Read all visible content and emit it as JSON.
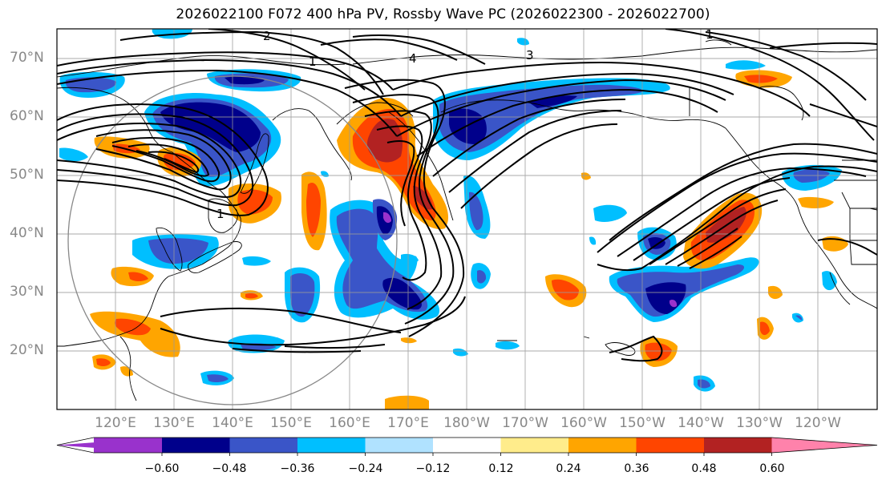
{
  "title": "2026022100 F072 400 hPa PV, Rossby Wave PC (2026022300 - 2026022700)",
  "lat_labels": [
    "70°N",
    "60°N",
    "50°N",
    "40°N",
    "30°N",
    "20°N"
  ],
  "lon_labels": [
    "120°E",
    "130°E",
    "140°E",
    "150°E",
    "160°E",
    "170°E",
    "180°W",
    "170°W",
    "160°W",
    "150°W",
    "140°W",
    "130°W",
    "120°W"
  ],
  "contour_labels": [
    "1",
    "2",
    "1",
    "4",
    "3",
    "1"
  ],
  "colorbar": {
    "ticks": [
      "−0.60",
      "−0.48",
      "−0.36",
      "−0.24",
      "−0.12",
      "0.12",
      "0.24",
      "0.36",
      "0.48",
      "0.60"
    ],
    "colors": [
      "#9932cc",
      "#00008b",
      "#3a55c8",
      "#00bfff",
      "#b0e2ff",
      "#ffffff",
      "#ffec8b",
      "#ffa500",
      "#ff4500",
      "#b22222",
      "#ff82ab"
    ]
  },
  "palette": {
    "neg_extreme": "#9932cc",
    "neg_strong": "#00008b",
    "neg_mod": "#3a55c8",
    "neg_weak": "#00bfff",
    "neg_faint": "#b0e2ff",
    "pos_faint": "#ffec8b",
    "pos_weak": "#ffa500",
    "pos_mod": "#ff4500",
    "pos_strong": "#b22222",
    "pos_extreme": "#ff82ab"
  }
}
